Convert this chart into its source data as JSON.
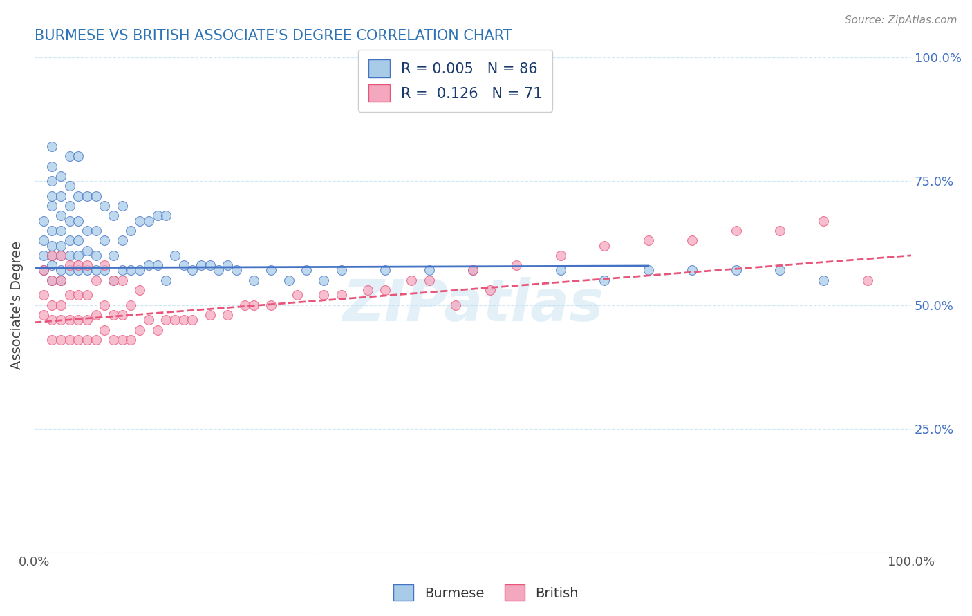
{
  "title": "BURMESE VS BRITISH ASSOCIATE'S DEGREE CORRELATION CHART",
  "ylabel": "Associate's Degree",
  "source": "Source: ZipAtlas.com",
  "watermark": "ZIPatlas",
  "xlim": [
    0,
    1
  ],
  "ylim": [
    0,
    1
  ],
  "burmese_R": 0.005,
  "burmese_N": 86,
  "british_R": 0.126,
  "british_N": 71,
  "burmese_color": "#a8cce8",
  "british_color": "#f4a8c0",
  "burmese_line_color": "#4472c4",
  "british_line_color": "#e8557a",
  "grid_color": "#d0e8f5",
  "title_color": "#2e74b5",
  "legend_text_color": "#1a3a6b",
  "right_ytick_color": "#4472c4",
  "background_color": "#ffffff",
  "burmese_x": [
    0.01,
    0.01,
    0.01,
    0.01,
    0.02,
    0.02,
    0.02,
    0.02,
    0.02,
    0.02,
    0.02,
    0.02,
    0.02,
    0.02,
    0.03,
    0.03,
    0.03,
    0.03,
    0.03,
    0.03,
    0.03,
    0.03,
    0.04,
    0.04,
    0.04,
    0.04,
    0.04,
    0.04,
    0.04,
    0.05,
    0.05,
    0.05,
    0.05,
    0.05,
    0.05,
    0.06,
    0.06,
    0.06,
    0.06,
    0.07,
    0.07,
    0.07,
    0.07,
    0.08,
    0.08,
    0.08,
    0.09,
    0.09,
    0.09,
    0.1,
    0.1,
    0.1,
    0.11,
    0.11,
    0.12,
    0.12,
    0.13,
    0.13,
    0.14,
    0.14,
    0.15,
    0.15,
    0.16,
    0.17,
    0.18,
    0.19,
    0.2,
    0.21,
    0.22,
    0.23,
    0.25,
    0.27,
    0.29,
    0.31,
    0.33,
    0.35,
    0.4,
    0.45,
    0.5,
    0.6,
    0.65,
    0.7,
    0.75,
    0.8,
    0.85,
    0.9
  ],
  "burmese_y": [
    0.57,
    0.6,
    0.63,
    0.67,
    0.55,
    0.58,
    0.6,
    0.62,
    0.65,
    0.7,
    0.72,
    0.75,
    0.78,
    0.82,
    0.55,
    0.57,
    0.6,
    0.62,
    0.65,
    0.68,
    0.72,
    0.76,
    0.57,
    0.6,
    0.63,
    0.67,
    0.7,
    0.74,
    0.8,
    0.57,
    0.6,
    0.63,
    0.67,
    0.72,
    0.8,
    0.57,
    0.61,
    0.65,
    0.72,
    0.57,
    0.6,
    0.65,
    0.72,
    0.57,
    0.63,
    0.7,
    0.55,
    0.6,
    0.68,
    0.57,
    0.63,
    0.7,
    0.57,
    0.65,
    0.57,
    0.67,
    0.58,
    0.67,
    0.58,
    0.68,
    0.55,
    0.68,
    0.6,
    0.58,
    0.57,
    0.58,
    0.58,
    0.57,
    0.58,
    0.57,
    0.55,
    0.57,
    0.55,
    0.57,
    0.55,
    0.57,
    0.57,
    0.57,
    0.57,
    0.57,
    0.55,
    0.57,
    0.57,
    0.57,
    0.57,
    0.55
  ],
  "british_x": [
    0.01,
    0.01,
    0.01,
    0.02,
    0.02,
    0.02,
    0.02,
    0.02,
    0.03,
    0.03,
    0.03,
    0.03,
    0.03,
    0.04,
    0.04,
    0.04,
    0.04,
    0.05,
    0.05,
    0.05,
    0.05,
    0.06,
    0.06,
    0.06,
    0.06,
    0.07,
    0.07,
    0.07,
    0.08,
    0.08,
    0.08,
    0.09,
    0.09,
    0.09,
    0.1,
    0.1,
    0.1,
    0.11,
    0.11,
    0.12,
    0.12,
    0.13,
    0.14,
    0.15,
    0.16,
    0.17,
    0.18,
    0.2,
    0.22,
    0.24,
    0.25,
    0.27,
    0.3,
    0.33,
    0.35,
    0.38,
    0.4,
    0.43,
    0.45,
    0.5,
    0.55,
    0.6,
    0.65,
    0.7,
    0.75,
    0.8,
    0.85,
    0.9,
    0.95,
    0.48,
    0.52
  ],
  "british_y": [
    0.48,
    0.52,
    0.57,
    0.43,
    0.47,
    0.5,
    0.55,
    0.6,
    0.43,
    0.47,
    0.5,
    0.55,
    0.6,
    0.43,
    0.47,
    0.52,
    0.58,
    0.43,
    0.47,
    0.52,
    0.58,
    0.43,
    0.47,
    0.52,
    0.58,
    0.43,
    0.48,
    0.55,
    0.45,
    0.5,
    0.58,
    0.43,
    0.48,
    0.55,
    0.43,
    0.48,
    0.55,
    0.43,
    0.5,
    0.45,
    0.53,
    0.47,
    0.45,
    0.47,
    0.47,
    0.47,
    0.47,
    0.48,
    0.48,
    0.5,
    0.5,
    0.5,
    0.52,
    0.52,
    0.52,
    0.53,
    0.53,
    0.55,
    0.55,
    0.57,
    0.58,
    0.6,
    0.62,
    0.63,
    0.63,
    0.65,
    0.65,
    0.67,
    0.55,
    0.5,
    0.53
  ],
  "burmese_line_x": [
    0.0,
    0.7
  ],
  "burmese_line_y": [
    0.575,
    0.579
  ],
  "british_line_x": [
    0.0,
    1.0
  ],
  "british_line_y": [
    0.465,
    0.6
  ]
}
